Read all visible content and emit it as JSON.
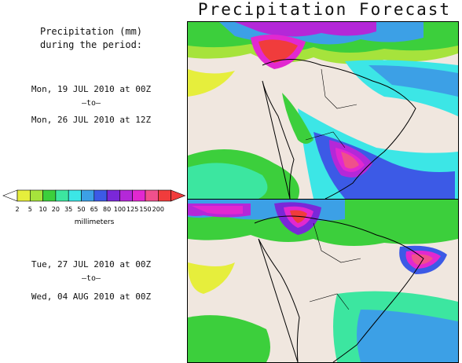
{
  "title": "Precipitation Forecast",
  "description": {
    "line1": "Precipitation (mm)",
    "line2": "during the period:"
  },
  "period1": {
    "start": "Mon, 19 JUL 2010 at 00Z",
    "sep": "–to–",
    "end": "Mon, 26 JUL 2010 at 12Z"
  },
  "period2": {
    "start": "Tue, 27 JUL 2010 at 00Z",
    "sep": "–to–",
    "end": "Wed, 04 AUG 2010 at 00Z"
  },
  "legend": {
    "unit": "millimeters",
    "ticks": [
      "2",
      "5",
      "10",
      "20",
      "35",
      "50",
      "65",
      "80",
      "100",
      "125",
      "150",
      "200"
    ],
    "colors": [
      "#e6ee3c",
      "#a6e33c",
      "#3ccf3c",
      "#3ce6a0",
      "#3ce6e6",
      "#3ca0e6",
      "#3c5ae6",
      "#7a28d8",
      "#b428d8",
      "#e228d0",
      "#f0508c",
      "#f03c3c"
    ],
    "under_color": "#ffffff",
    "over_color": "#f03c3c"
  },
  "map": {
    "land_color": "#f0e7df",
    "ocean_color": "#ffffff"
  }
}
